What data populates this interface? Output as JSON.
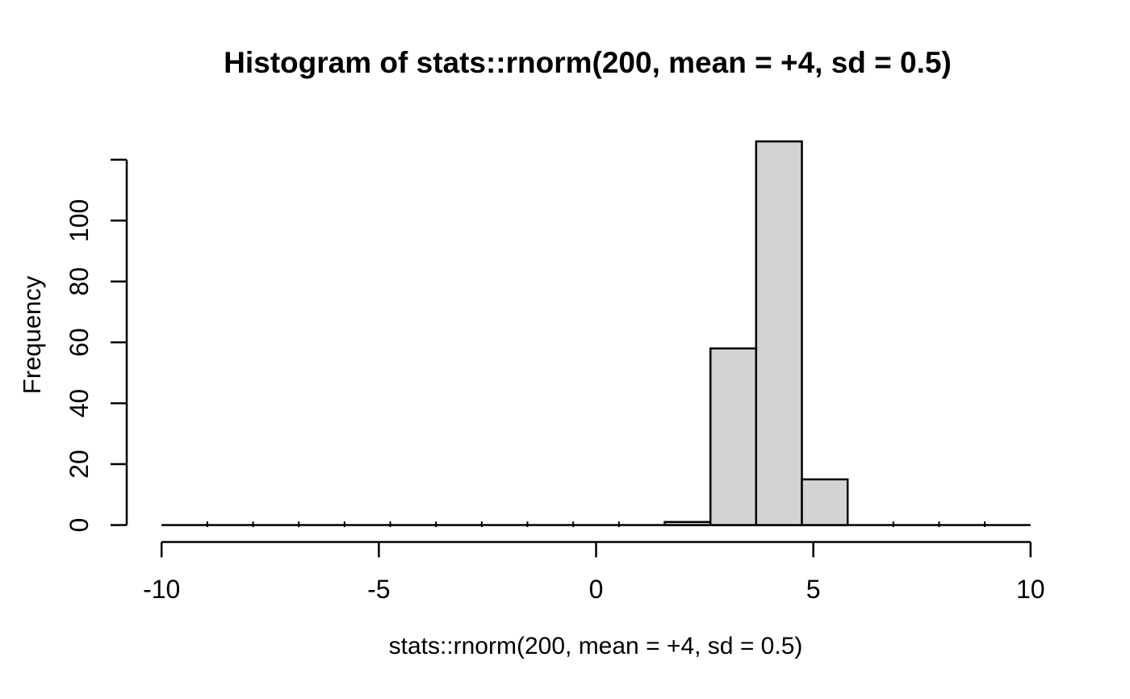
{
  "chart_data": {
    "type": "bar",
    "variant": "histogram",
    "title": "Histogram of stats::rnorm(200, mean = +4, sd = 0.5)",
    "xlabel": "stats::rnorm(200, mean = +4, sd = 0.5)",
    "ylabel": "Frequency",
    "x_axis": {
      "range": [
        -10,
        10
      ],
      "ticks": [
        -10,
        -5,
        0,
        5,
        10
      ],
      "tick_labels": [
        "-10",
        "-5",
        "0",
        "5",
        "10"
      ]
    },
    "y_axis": {
      "range": [
        0,
        120
      ],
      "ticks": [
        0,
        20,
        40,
        60,
        80,
        100,
        120
      ],
      "tick_labels": [
        "0",
        "20",
        "40",
        "60",
        "80",
        "100",
        ""
      ]
    },
    "bins": {
      "start": -10,
      "end": 10,
      "n_bins": 19,
      "bin_width": 1.0526,
      "counts": [
        0,
        0,
        0,
        0,
        0,
        0,
        0,
        0,
        0,
        0,
        0,
        1,
        58,
        126,
        15,
        0,
        0,
        0,
        0
      ]
    },
    "nonzero_bins": [
      {
        "from": 1.58,
        "to": 2.63,
        "count": 1
      },
      {
        "from": 2.63,
        "to": 3.68,
        "count": 58
      },
      {
        "from": 3.68,
        "to": 4.74,
        "count": 126
      },
      {
        "from": 4.74,
        "to": 5.79,
        "count": 15
      }
    ],
    "grid": false,
    "legend": false,
    "colors": {
      "bar_fill": "#d3d3d3",
      "bar_border": "#000000",
      "axis": "#000000",
      "text": "#000000",
      "background": "#ffffff"
    }
  }
}
